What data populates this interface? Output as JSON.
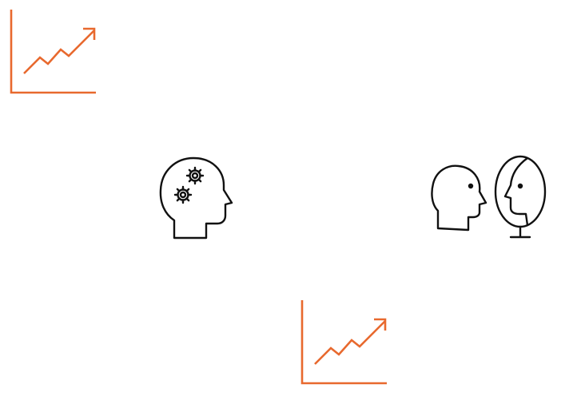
{
  "colors": {
    "accent": "#e8692e",
    "ink": "#111111",
    "background": "#ffffff"
  },
  "icons": [
    {
      "name": "growth-chart-icon",
      "color": "accent"
    },
    {
      "name": "head-with-gears-icon",
      "color": "ink"
    },
    {
      "name": "head-facing-mirror-icon",
      "color": "ink"
    },
    {
      "name": "growth-chart-icon",
      "color": "accent"
    }
  ]
}
